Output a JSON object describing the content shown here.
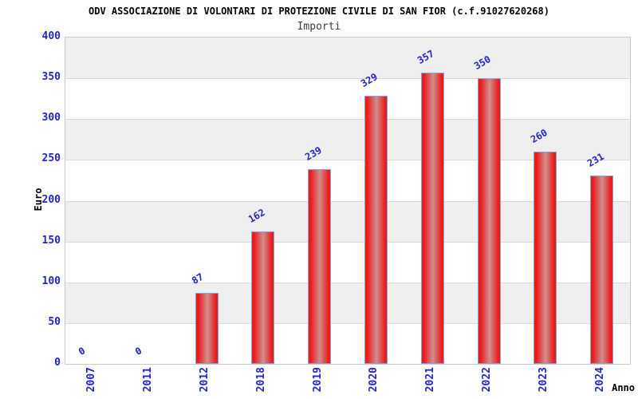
{
  "chart_data": {
    "type": "bar",
    "title": "ODV ASSOCIAZIONE DI VOLONTARI DI PROTEZIONE CIVILE DI SAN FIOR (c.f.91027620268)",
    "subtitle": "Importi",
    "categories": [
      "2007",
      "2011",
      "2012",
      "2018",
      "2019",
      "2020",
      "2021",
      "2022",
      "2023",
      "2024"
    ],
    "values": [
      0,
      0,
      87,
      162,
      239,
      329,
      357,
      350,
      260,
      231
    ],
    "xlabel": "Anno",
    "ylabel": "Euro",
    "ylim": [
      0,
      400
    ],
    "yticks": [
      0,
      50,
      100,
      150,
      200,
      250,
      300,
      350,
      400
    ],
    "grid": "horizontal",
    "legend_position": "none",
    "colors": {
      "tick_label": "#2323c8",
      "value_label": "#2323c8",
      "bar_fill_edge": "#ee1b1b",
      "bar_fill_mid": "#cf8f8f",
      "bar_border": "#74ace0",
      "band_gray": "#efefef",
      "band_white": "#ffffff",
      "gridline": "#d9d9d9",
      "plot_border": "#c9c9c9",
      "title_color": "#000000",
      "subtitle_color": "#3c3c3c"
    }
  }
}
